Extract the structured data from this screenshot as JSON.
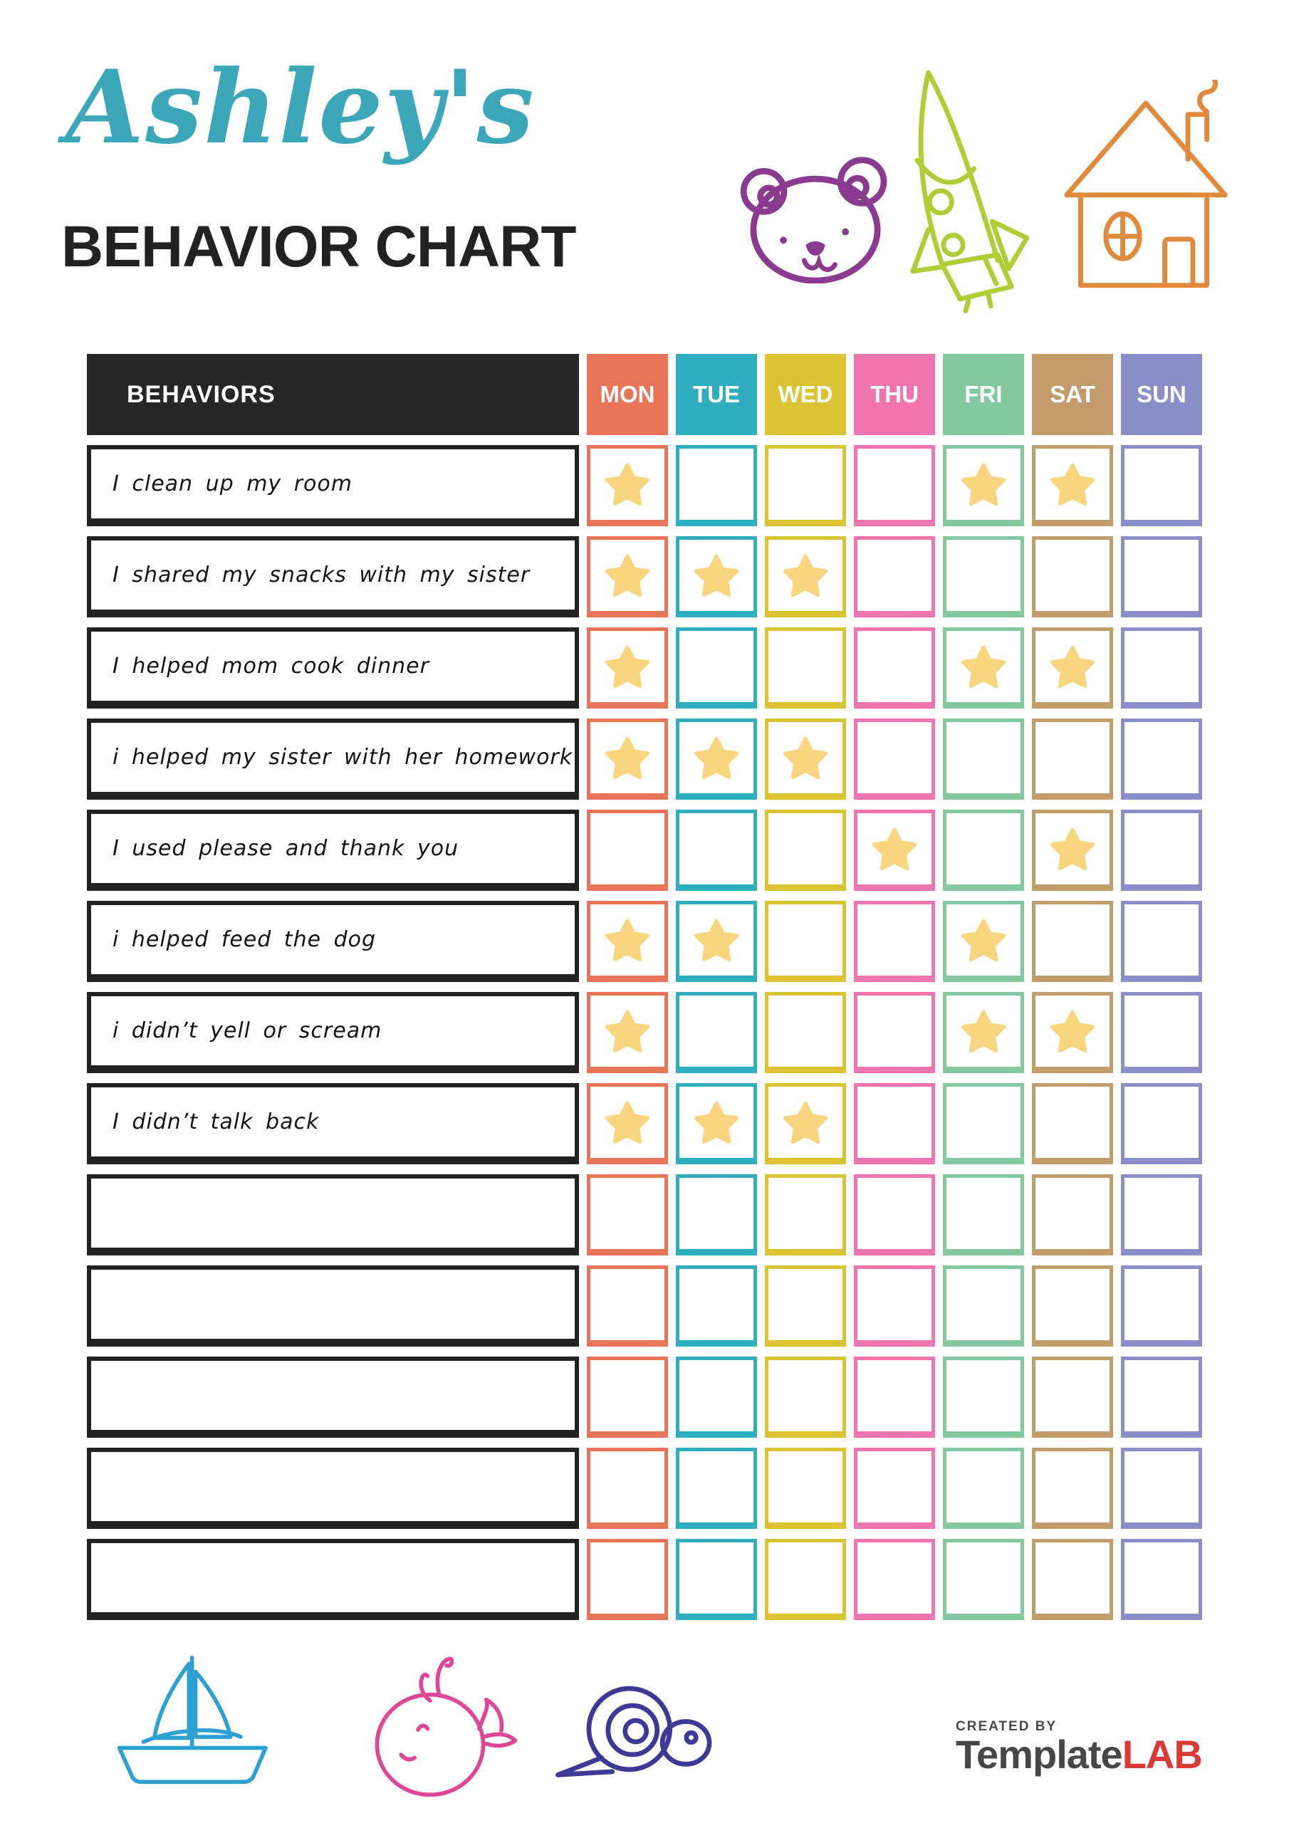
{
  "header": {
    "name_script": "Ashley's",
    "title": "BEHAVIOR CHART"
  },
  "colors": {
    "title_script": "#3BA7B8",
    "title_main": "#222222",
    "behaviors_header_bg": "#262626",
    "behavior_box_border": "#222222",
    "logo_created_by": "#4A4A4A",
    "logo_dark": "#474747",
    "logo_red": "#D93A36"
  },
  "doodles": {
    "top": [
      {
        "icon": "bear-icon",
        "color": "#8A3B8F"
      },
      {
        "icon": "rocket-icon",
        "color": "#AECD36"
      },
      {
        "icon": "house-icon",
        "color": "#DF8A3C"
      }
    ],
    "bottom": [
      {
        "icon": "sailboat-icon",
        "color": "#2D9FD1"
      },
      {
        "icon": "whale-icon",
        "color": "#DE4796"
      },
      {
        "icon": "snail-icon",
        "color": "#3C3A96"
      }
    ]
  },
  "table": {
    "behaviors_header": "BEHAVIORS",
    "star_color": "#F8D57E",
    "days": [
      {
        "label": "MON",
        "color": "#E8745A"
      },
      {
        "label": "TUE",
        "color": "#2FAEC0"
      },
      {
        "label": "WED",
        "color": "#DCC334"
      },
      {
        "label": "THU",
        "color": "#F075AF"
      },
      {
        "label": "FRI",
        "color": "#83C89F"
      },
      {
        "label": "SAT",
        "color": "#C39C6C"
      },
      {
        "label": "SUN",
        "color": "#8A8EC8"
      }
    ],
    "rows": [
      {
        "label": "I clean up my room",
        "stars": [
          "MON",
          "FRI",
          "SAT"
        ]
      },
      {
        "label": "I shared my snacks with my sister",
        "stars": [
          "MON",
          "TUE",
          "WED"
        ]
      },
      {
        "label": "I helped mom cook dinner",
        "stars": [
          "MON",
          "FRI",
          "SAT"
        ]
      },
      {
        "label": "i helped my sister with her homework",
        "stars": [
          "MON",
          "TUE",
          "WED"
        ]
      },
      {
        "label": "I used please and thank you",
        "stars": [
          "THU",
          "SAT"
        ]
      },
      {
        "label": "i helped feed the dog",
        "stars": [
          "MON",
          "TUE",
          "FRI"
        ]
      },
      {
        "label": "i didn’t yell or scream",
        "stars": [
          "MON",
          "FRI",
          "SAT"
        ]
      },
      {
        "label": "I didn’t talk back",
        "stars": [
          "MON",
          "TUE",
          "WED"
        ]
      },
      {
        "label": "",
        "stars": []
      },
      {
        "label": "",
        "stars": []
      },
      {
        "label": "",
        "stars": []
      },
      {
        "label": "",
        "stars": []
      },
      {
        "label": "",
        "stars": []
      }
    ]
  },
  "footer": {
    "created_by": "CREATED BY",
    "brand_dark": "Template",
    "brand_red": "LAB"
  }
}
